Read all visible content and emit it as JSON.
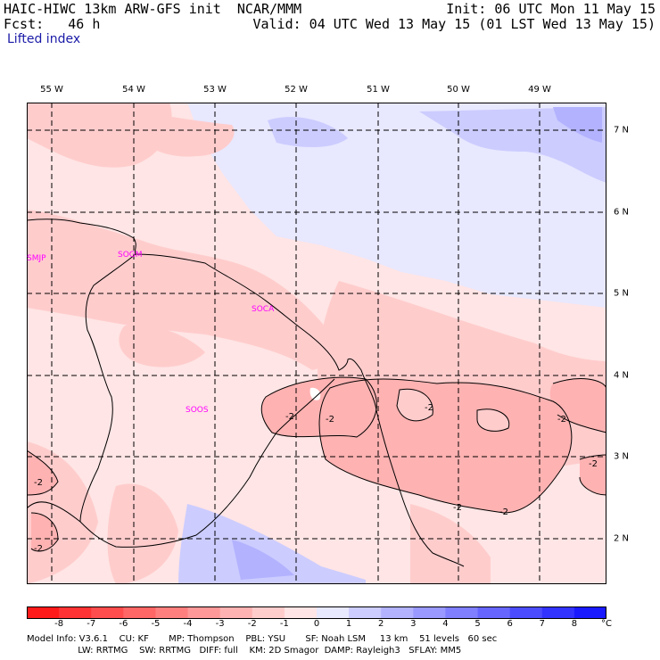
{
  "header": {
    "left_line1": "HAIC-HIWC 13km ARW-GFS init  NCAR/MMM",
    "left_line2": "Fcst:   46 h",
    "right_line1": "Init: 06 UTC Mon 11 May 15",
    "right_line2": "Valid: 04 UTC Wed 13 May 15 (01 LST Wed 13 May 15)",
    "field_name": "Lifted index"
  },
  "map": {
    "longitudes": [
      "55 W",
      "54 W",
      "53 W",
      "52 W",
      "51 W",
      "50 W",
      "49 W"
    ],
    "latitudes": [
      "7 N",
      "6 N",
      "5 N",
      "4 N",
      "3 N",
      "2 N"
    ],
    "stations": [
      "SMJP",
      "SOGM",
      "SOCA",
      "SOOS"
    ],
    "contour_labels": [
      "-2",
      "-2",
      "-2",
      "-2",
      "-2",
      "-2",
      "-2",
      "-2",
      "-2"
    ]
  },
  "colorbar": {
    "unit": "°C",
    "ticks": [
      "-8",
      "-7",
      "-6",
      "-5",
      "-4",
      "-3",
      "-2",
      "-1",
      "0",
      "1",
      "2",
      "3",
      "4",
      "5",
      "6",
      "7",
      "8"
    ],
    "colors": [
      "#ff1a1a",
      "#ff3333",
      "#ff4c4c",
      "#ff6666",
      "#ff7f7f",
      "#ff9999",
      "#ffb2b2",
      "#ffcccc",
      "#ffe5e5",
      "#e8e8ff",
      "#ccccff",
      "#b2b2ff",
      "#9999ff",
      "#7f7fff",
      "#6666ff",
      "#4c4cff",
      "#3333ff",
      "#1a1aff"
    ]
  },
  "footer": {
    "line1": "Model Info: V3.6.1    CU: KF       MP: Thompson    PBL: YSU       SF: Noah LSM     13 km    51 levels   60 sec",
    "line2": "                  LW: RRTMG    SW: RRTMG   DIFF: full    KM: 2D Smagor  DAMP: Rayleigh3   SFLAY: MM5"
  }
}
